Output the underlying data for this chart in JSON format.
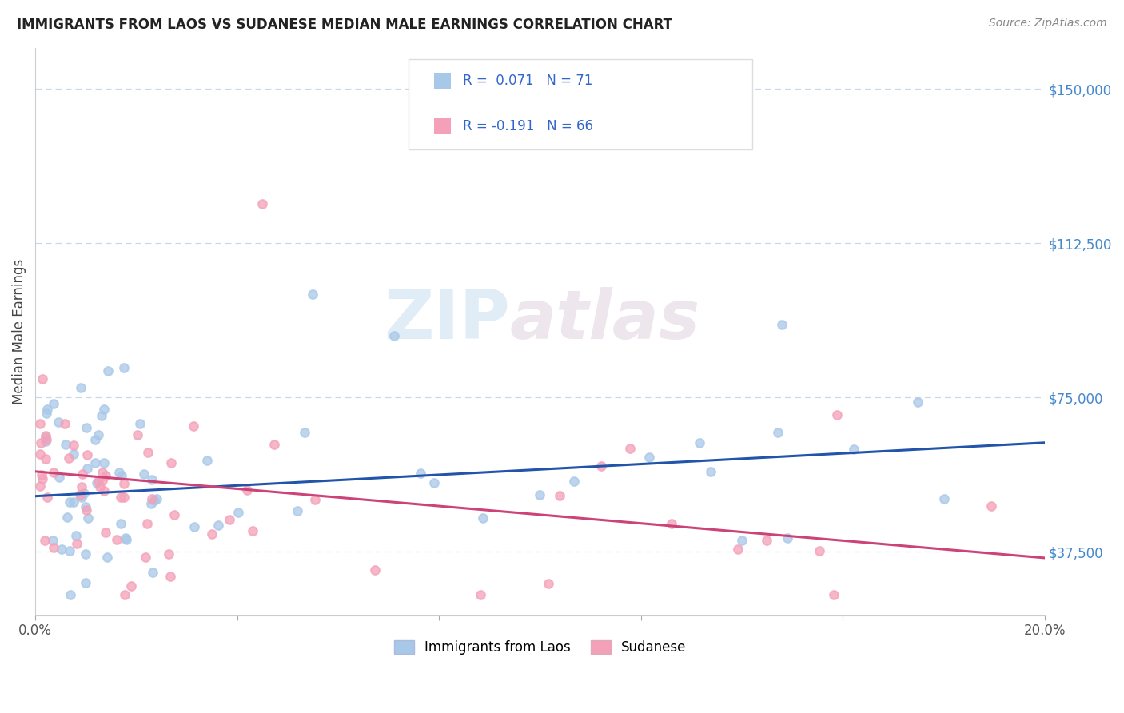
{
  "title": "IMMIGRANTS FROM LAOS VS SUDANESE MEDIAN MALE EARNINGS CORRELATION CHART",
  "source": "Source: ZipAtlas.com",
  "xlabel_laos": "Immigrants from Laos",
  "xlabel_sudanese": "Sudanese",
  "ylabel": "Median Male Earnings",
  "xlim": [
    0.0,
    0.2
  ],
  "ylim": [
    22000,
    160000
  ],
  "yticks_right": [
    37500,
    75000,
    112500,
    150000
  ],
  "ytick_labels_right": [
    "$37,500",
    "$75,000",
    "$112,500",
    "$150,000"
  ],
  "color_laos": "#a8c8e8",
  "color_sudanese": "#f4a0b8",
  "color_line_laos": "#2255aa",
  "color_line_sudanese": "#cc4477",
  "background_color": "#ffffff",
  "grid_color": "#c8d8e8",
  "watermark_zip": "ZIP",
  "watermark_atlas": "atlas",
  "line_laos_x0": 0.0,
  "line_laos_y0": 51000,
  "line_laos_x1": 0.2,
  "line_laos_y1": 64000,
  "line_sud_x0": 0.0,
  "line_sud_y0": 57000,
  "line_sud_x1": 0.2,
  "line_sud_y1": 36000
}
